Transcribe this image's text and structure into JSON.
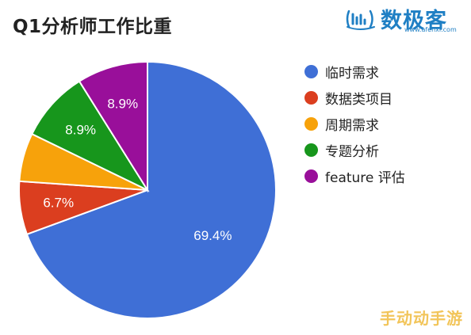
{
  "logo": {
    "text": "数极客",
    "url": "www.afenxi.com",
    "color": "#1f7fc4"
  },
  "watermark": "手动动手游",
  "chart_data": {
    "type": "pie",
    "title": "Q1分析师工作比重",
    "legend_position": "right",
    "start_angle_deg": 0,
    "direction": "clockwise",
    "slices": [
      {
        "label": "临时需求",
        "value": 69.4,
        "display": "69.4%",
        "color": "#3f6fd6"
      },
      {
        "label": "数据类项目",
        "value": 6.7,
        "display": "6.7%",
        "color": "#db3e1f"
      },
      {
        "label": "周期需求",
        "value": 6.1,
        "display": "",
        "color": "#f7a20b"
      },
      {
        "label": "专题分析",
        "value": 8.9,
        "display": "8.9%",
        "color": "#17961c"
      },
      {
        "label": "feature 评估",
        "value": 8.9,
        "display": "8.9%",
        "color": "#990f9a"
      }
    ]
  }
}
